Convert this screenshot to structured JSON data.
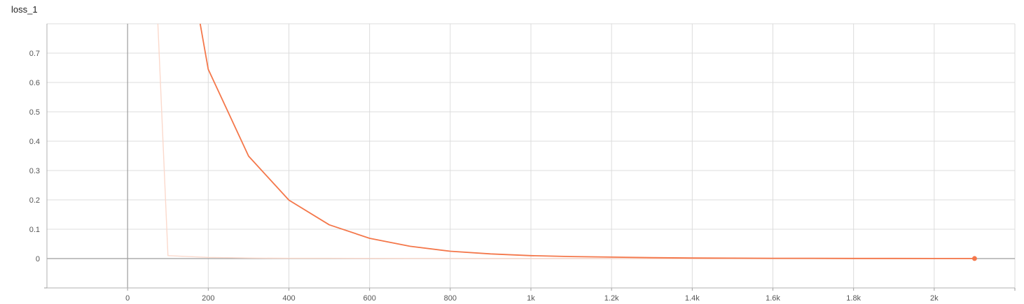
{
  "chart_data": {
    "type": "line",
    "title": "loss_1",
    "xlabel": "",
    "ylabel": "",
    "x_ticks": [
      0,
      200,
      400,
      600,
      800,
      1000,
      1200,
      1400,
      1600,
      1800,
      2000
    ],
    "x_tick_labels": [
      "0",
      "200",
      "400",
      "600",
      "800",
      "1k",
      "1.2k",
      "1.4k",
      "1.6k",
      "1.8k",
      "2k"
    ],
    "y_ticks": [
      0,
      0.1,
      0.2,
      0.3,
      0.4,
      0.5,
      0.6,
      0.7
    ],
    "y_tick_labels": [
      "0",
      "0.1",
      "0.2",
      "0.3",
      "0.4",
      "0.5",
      "0.6",
      "0.7"
    ],
    "xlim": [
      -200,
      2200
    ],
    "ylim": [
      -0.1,
      0.8
    ],
    "grid": true,
    "series": [
      {
        "role": "raw",
        "color": "#fbd9cc",
        "x": [
          75,
          100,
          200,
          300,
          400,
          500,
          600,
          700,
          800,
          900,
          1000,
          1100,
          1200,
          1300,
          1400,
          1500,
          1600,
          1700,
          1800,
          1900,
          2000,
          2100
        ],
        "y": [
          0.8,
          0.01,
          0.004,
          0.002,
          0.001,
          0.001,
          0.0008,
          0.0005,
          0.0004,
          0.0003,
          0.0003,
          0.0002,
          0.0002,
          0.0001,
          0.0001,
          0.0001,
          0.0001,
          0.0001,
          0.0001,
          0.0001,
          0.0001,
          0.0001
        ]
      },
      {
        "role": "smoothed",
        "color": "#f4774a",
        "x": [
          180,
          200,
          300,
          400,
          500,
          600,
          700,
          800,
          900,
          1000,
          1100,
          1200,
          1300,
          1400,
          1500,
          1600,
          1700,
          1800,
          1900,
          2000,
          2100
        ],
        "y": [
          0.8,
          0.645,
          0.349,
          0.199,
          0.115,
          0.069,
          0.042,
          0.025,
          0.016,
          0.01,
          0.007,
          0.005,
          0.003,
          0.002,
          0.0015,
          0.001,
          0.001,
          0.0005,
          0.0005,
          0.0003,
          0.0002
        ]
      }
    ],
    "last_point": {
      "x": 2100,
      "y": 0.0002
    }
  }
}
